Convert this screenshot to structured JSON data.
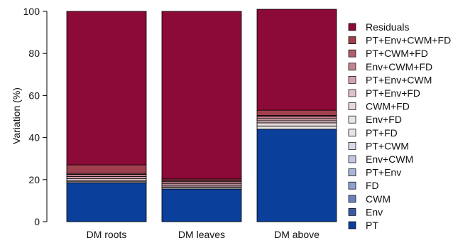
{
  "chart_data": {
    "type": "bar",
    "stacked": true,
    "categories": [
      "DM roots",
      "DM leaves",
      "DM above"
    ],
    "ylabel": "Variation (%)",
    "xlabel": "",
    "ylim": [
      0,
      100
    ],
    "yticks": [
      "0",
      "20",
      "40",
      "60",
      "80",
      "100"
    ],
    "grid": false,
    "legend_position": "right",
    "series": [
      {
        "name": "PT",
        "color": "#0a3f9c",
        "values": [
          18.5,
          15.5,
          44.0
        ]
      },
      {
        "name": "Env",
        "color": "#3b5aa6",
        "values": [
          0.0,
          0.0,
          0.0
        ]
      },
      {
        "name": "CWM",
        "color": "#6b7fbd",
        "values": [
          0.0,
          0.0,
          0.0
        ]
      },
      {
        "name": "FD",
        "color": "#8f9fcf",
        "values": [
          0.0,
          0.0,
          0.0
        ]
      },
      {
        "name": "PT+Env",
        "color": "#aab5da",
        "values": [
          0.0,
          0.0,
          0.0
        ]
      },
      {
        "name": "Env+CWM",
        "color": "#c3c9e3",
        "values": [
          0.0,
          0.0,
          0.0
        ]
      },
      {
        "name": "PT+CWM",
        "color": "#d7d9e6",
        "values": [
          0.0,
          0.0,
          0.0
        ]
      },
      {
        "name": "PT+FD",
        "color": "#e4e4e8",
        "values": [
          0.0,
          0.0,
          0.0
        ]
      },
      {
        "name": "Env+FD",
        "color": "#e9e6e8",
        "values": [
          0.5,
          0.5,
          1.5
        ]
      },
      {
        "name": "CWM+FD",
        "color": "#e7d8dc",
        "values": [
          0.5,
          0.5,
          1.5
        ]
      },
      {
        "name": "PT+Env+FD",
        "color": "#dfc1c8",
        "values": [
          1.0,
          0.5,
          1.0
        ]
      },
      {
        "name": "PT+Env+CWM",
        "color": "#d3a4ae",
        "values": [
          1.0,
          1.0,
          1.0
        ]
      },
      {
        "name": "Env+CWM+FD",
        "color": "#c4848f",
        "values": [
          1.0,
          1.0,
          1.0
        ]
      },
      {
        "name": "PT+CWM+FD",
        "color": "#b05d6d",
        "values": [
          0.5,
          0.5,
          0.5
        ]
      },
      {
        "name": "PT+Env+CWM+FD",
        "color": "#a0404f",
        "values": [
          4.0,
          0.8,
          2.5
        ]
      },
      {
        "name": "Residuals",
        "color": "#8c0a37",
        "values": [
          73.0,
          79.7,
          48.0
        ]
      }
    ]
  }
}
